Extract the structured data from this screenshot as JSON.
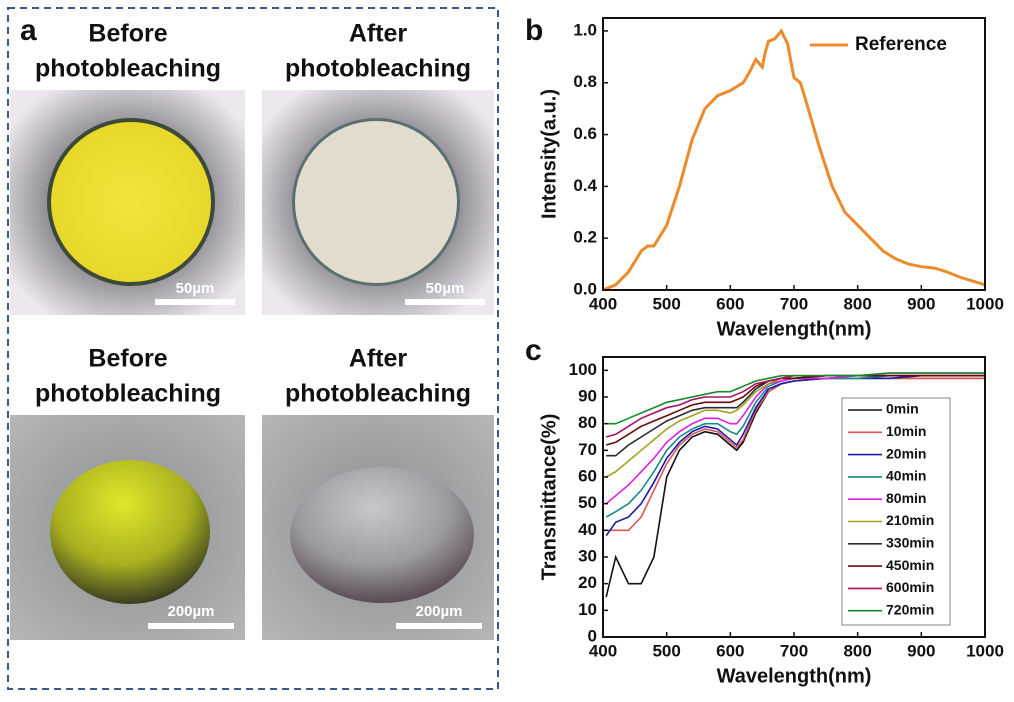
{
  "panel_labels": [
    "a",
    "b",
    "c"
  ],
  "panel_a": {
    "photos": [
      {
        "title": [
          "Before",
          "photobleaching"
        ],
        "scale_bar": "50µm"
      },
      {
        "title": [
          "After",
          "photobleaching"
        ],
        "scale_bar": "50µm"
      },
      {
        "title": [
          "Before",
          "photobleaching"
        ],
        "scale_bar": "200µm"
      },
      {
        "title": [
          "After",
          "photobleaching"
        ],
        "scale_bar": "200µm"
      }
    ]
  },
  "chart_data": [
    {
      "type": "line",
      "x_label": "Wavelength(nm)",
      "y_label": "Intensity(a.u.)",
      "x": [
        400,
        420,
        440,
        460,
        470,
        480,
        500,
        520,
        540,
        560,
        580,
        600,
        620,
        630,
        640,
        650,
        655,
        660,
        670,
        680,
        690,
        700,
        710,
        720,
        740,
        760,
        780,
        800,
        820,
        840,
        860,
        880,
        900,
        920,
        940,
        960,
        980,
        1000
      ],
      "series": [
        {
          "name": "Reference",
          "color": "#ec8a2c",
          "values": [
            0.0,
            0.02,
            0.07,
            0.15,
            0.17,
            0.17,
            0.25,
            0.4,
            0.58,
            0.7,
            0.75,
            0.77,
            0.8,
            0.84,
            0.89,
            0.86,
            0.92,
            0.96,
            0.97,
            1.0,
            0.95,
            0.82,
            0.8,
            0.72,
            0.55,
            0.4,
            0.3,
            0.25,
            0.2,
            0.15,
            0.12,
            0.1,
            0.09,
            0.085,
            0.07,
            0.05,
            0.035,
            0.02
          ]
        }
      ],
      "xlim": [
        400,
        1000
      ],
      "xticks": [
        400,
        500,
        600,
        700,
        800,
        900,
        1000
      ],
      "ylim": [
        0,
        1.05
      ],
      "yticks": [
        {
          "value": 0,
          "label": "0.0"
        },
        0.2,
        0.4,
        0.6,
        0.8,
        {
          "value": 1,
          "label": "1.0"
        }
      ],
      "legend": "top-right"
    },
    {
      "type": "line",
      "x_label": "Wavelength(nm)",
      "y_label": "Transmittance(%)",
      "x": [
        405,
        420,
        440,
        460,
        480,
        500,
        520,
        540,
        560,
        580,
        600,
        610,
        620,
        640,
        660,
        680,
        700,
        750,
        800,
        850,
        900,
        950,
        1000
      ],
      "series": [
        {
          "name": "0min",
          "color": "#111111",
          "values": [
            15,
            30,
            20,
            20,
            30,
            60,
            70,
            75,
            77,
            76,
            72,
            70,
            73,
            84,
            92,
            95,
            96,
            97,
            97,
            97,
            97,
            97,
            97
          ]
        },
        {
          "name": "10min",
          "color": "#e05454",
          "values": [
            40,
            40,
            40,
            45,
            55,
            65,
            72,
            76,
            78,
            77,
            73,
            71,
            74,
            85,
            92,
            95,
            96,
            97,
            97,
            97,
            97,
            97,
            97
          ]
        },
        {
          "name": "20min",
          "color": "#1a1aa8",
          "values": [
            38,
            43,
            45,
            50,
            58,
            67,
            73,
            77,
            79,
            78,
            74,
            72,
            76,
            86,
            93,
            95,
            96,
            97,
            97,
            97,
            98,
            98,
            98
          ]
        },
        {
          "name": "40min",
          "color": "#178a8a",
          "values": [
            45,
            47,
            50,
            55,
            62,
            70,
            75,
            78,
            80,
            80,
            77,
            76,
            79,
            88,
            94,
            96,
            97,
            97,
            97,
            98,
            98,
            98,
            98
          ]
        },
        {
          "name": "80min",
          "color": "#e21ee2",
          "values": [
            50,
            53,
            57,
            62,
            67,
            73,
            77,
            80,
            82,
            82,
            80,
            80,
            83,
            90,
            95,
            96,
            97,
            97,
            98,
            98,
            98,
            98,
            98
          ]
        },
        {
          "name": "210min",
          "color": "#a3a321",
          "values": [
            60,
            62,
            66,
            70,
            74,
            78,
            81,
            83,
            85,
            85,
            84,
            85,
            87,
            92,
            95,
            97,
            97,
            98,
            98,
            98,
            98,
            98,
            98
          ]
        },
        {
          "name": "330min",
          "color": "#2a2a3a",
          "values": [
            68,
            68,
            72,
            75,
            78,
            81,
            83,
            85,
            86,
            86,
            86,
            86,
            88,
            93,
            96,
            97,
            97,
            98,
            98,
            98,
            98,
            98,
            98
          ]
        },
        {
          "name": "450min",
          "color": "#6a0a0a",
          "values": [
            72,
            73,
            76,
            79,
            81,
            83,
            85,
            87,
            88,
            88,
            88,
            89,
            90,
            94,
            96,
            97,
            97,
            98,
            98,
            98,
            98,
            98,
            98
          ]
        },
        {
          "name": "600min",
          "color": "#a8106a",
          "values": [
            75,
            76,
            79,
            82,
            84,
            86,
            87,
            89,
            90,
            90,
            90,
            91,
            92,
            95,
            96,
            97,
            98,
            98,
            98,
            99,
            99,
            99,
            99
          ]
        },
        {
          "name": "720min",
          "color": "#178a2a",
          "values": [
            80,
            80,
            82,
            84,
            86,
            88,
            89,
            90,
            91,
            92,
            92,
            93,
            94,
            96,
            97,
            98,
            98,
            98,
            98,
            99,
            99,
            99,
            99
          ]
        }
      ],
      "xlim": [
        400,
        1000
      ],
      "xticks": [
        400,
        500,
        600,
        700,
        800,
        900,
        1000
      ],
      "ylim": [
        0,
        105
      ],
      "yticks": [
        0,
        10,
        20,
        30,
        40,
        50,
        60,
        70,
        80,
        90,
        100
      ],
      "legend": "right"
    }
  ]
}
